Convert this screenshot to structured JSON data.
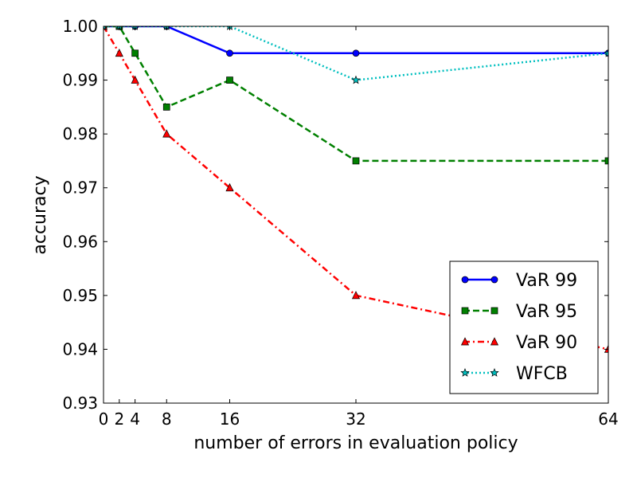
{
  "chart_data": {
    "type": "line",
    "title": "",
    "xlabel": "number of errors in evaluation policy",
    "ylabel": "accuracy",
    "xlim": [
      0,
      64
    ],
    "ylim": [
      0.93,
      1.0
    ],
    "x_ticks": [
      0,
      2,
      4,
      8,
      16,
      32,
      64
    ],
    "y_ticks": [
      0.93,
      0.94,
      0.95,
      0.96,
      0.97,
      0.98,
      0.99,
      1.0
    ],
    "x_tick_labels": [
      "0",
      "2",
      "4",
      "8",
      "16",
      "32",
      "64"
    ],
    "y_tick_labels": [
      "0.93",
      "0.94",
      "0.95",
      "0.96",
      "0.97",
      "0.98",
      "0.99",
      "1.00"
    ],
    "grid": false,
    "legend_position": "lower-right",
    "x": [
      0,
      2,
      4,
      8,
      16,
      32,
      64
    ],
    "series": [
      {
        "name": "VaR 99",
        "color": "#0000ff",
        "marker": "circle",
        "linestyle": "solid",
        "values": [
          1.0,
          1.0,
          1.0,
          1.0,
          0.995,
          0.995,
          0.995
        ]
      },
      {
        "name": "VaR 95",
        "color": "#008000",
        "marker": "square",
        "linestyle": "dashed",
        "values": [
          1.0,
          1.0,
          0.995,
          0.985,
          0.99,
          0.975,
          0.975
        ]
      },
      {
        "name": "VaR 90",
        "color": "#ff0000",
        "marker": "triangle",
        "linestyle": "dashdot",
        "values": [
          1.0,
          0.995,
          0.99,
          0.98,
          0.97,
          0.95,
          0.94
        ]
      },
      {
        "name": "WFCB",
        "color": "#00bfbf",
        "marker": "star",
        "linestyle": "dotted",
        "values": [
          1.0,
          1.0,
          1.0,
          1.0,
          1.0,
          0.99,
          0.995
        ]
      }
    ]
  }
}
